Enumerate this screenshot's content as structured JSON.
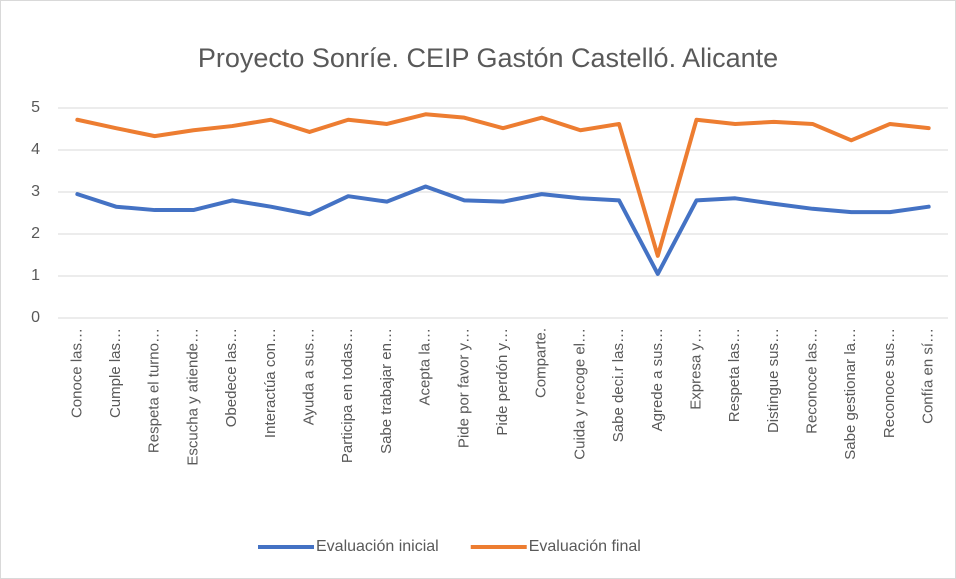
{
  "chart_data": {
    "type": "line",
    "title": "Proyecto Sonríe. CEIP Gastón Castelló. Alicante",
    "categories": [
      "Conoce las…",
      "Cumple las…",
      "Respeta el turno…",
      "Escucha y atiende…",
      "Obedece las…",
      "Interactúa con…",
      "Ayuda a sus…",
      "Participa en todas…",
      "Sabe trabajar en…",
      "Acepta la…",
      "Pide por favor y…",
      "Pide perdón y…",
      "Comparte.",
      "Cuida y recoge el…",
      "Sabe deci.r las…",
      "Agrede a sus…",
      "Expresa y…",
      "Respeta las…",
      "Distingue sus…",
      "Reconoce las…",
      "Sabe gestionar la…",
      "Reconoce sus…",
      "Confía en sí…"
    ],
    "series": [
      {
        "name": "Evaluación inicial",
        "color": "#4472c4",
        "values": [
          2.95,
          2.65,
          2.57,
          2.57,
          2.8,
          2.65,
          2.47,
          2.9,
          2.77,
          3.13,
          2.8,
          2.77,
          2.95,
          2.85,
          2.8,
          1.05,
          2.8,
          2.85,
          2.72,
          2.6,
          2.52,
          2.52,
          2.65
        ]
      },
      {
        "name": "Evaluación final",
        "color": "#ed7d31",
        "values": [
          4.72,
          4.52,
          4.33,
          4.47,
          4.57,
          4.72,
          4.43,
          4.72,
          4.62,
          4.85,
          4.77,
          4.52,
          4.77,
          4.47,
          4.62,
          1.48,
          4.72,
          4.62,
          4.67,
          4.62,
          4.23,
          4.62,
          4.52
        ]
      }
    ],
    "ylim": [
      0,
      5
    ],
    "yticks": [
      0,
      1,
      2,
      3,
      4,
      5
    ],
    "grid": true,
    "legend": "bottom"
  }
}
